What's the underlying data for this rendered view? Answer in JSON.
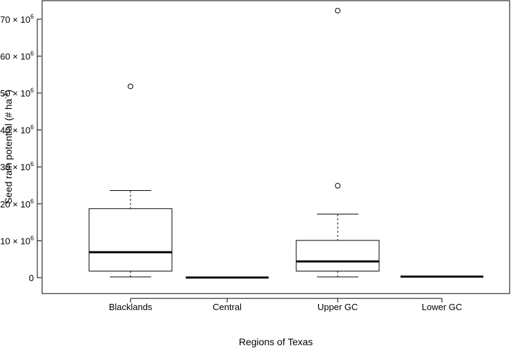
{
  "chart_data": {
    "type": "boxplot",
    "title": "",
    "xlabel": "Regions of Texas",
    "ylabel_main": "Seed rain potential (# ha",
    "ylabel_sup": "-1",
    "ylabel_close": ")",
    "ylim": [
      -1000000,
      74000000
    ],
    "yticks": [
      {
        "value": 0,
        "mant": "0",
        "exp": ""
      },
      {
        "value": 10000000,
        "mant": "10 × 10",
        "exp": "6"
      },
      {
        "value": 20000000,
        "mant": "20 × 10",
        "exp": "6"
      },
      {
        "value": 30000000,
        "mant": "30 × 10",
        "exp": "6"
      },
      {
        "value": 40000000,
        "mant": "40 × 10",
        "exp": "6"
      },
      {
        "value": 50000000,
        "mant": "50 × 10",
        "exp": "6"
      },
      {
        "value": 60000000,
        "mant": "60 × 10",
        "exp": "6"
      },
      {
        "value": 70000000,
        "mant": "70 × 10",
        "exp": "6"
      }
    ],
    "categories": [
      "Blacklands",
      "Central",
      "Upper GC",
      "Lower GC"
    ],
    "boxes": [
      {
        "category": "Blacklands",
        "min": 200000,
        "q1": 1800000,
        "median": 6900000,
        "q3": 18700000,
        "max": 23600000,
        "outliers": [
          51800000
        ]
      },
      {
        "category": "Central",
        "min": 0,
        "q1": 0,
        "median": 50000,
        "q3": 100000,
        "max": 150000,
        "outliers": []
      },
      {
        "category": "Upper GC",
        "min": 200000,
        "q1": 1800000,
        "median": 4400000,
        "q3": 10100000,
        "max": 17200000,
        "outliers": [
          24900000,
          72300000
        ]
      },
      {
        "category": "Lower GC",
        "min": 100000,
        "q1": 200000,
        "median": 300000,
        "q3": 400000,
        "max": 500000,
        "outliers": []
      }
    ]
  }
}
